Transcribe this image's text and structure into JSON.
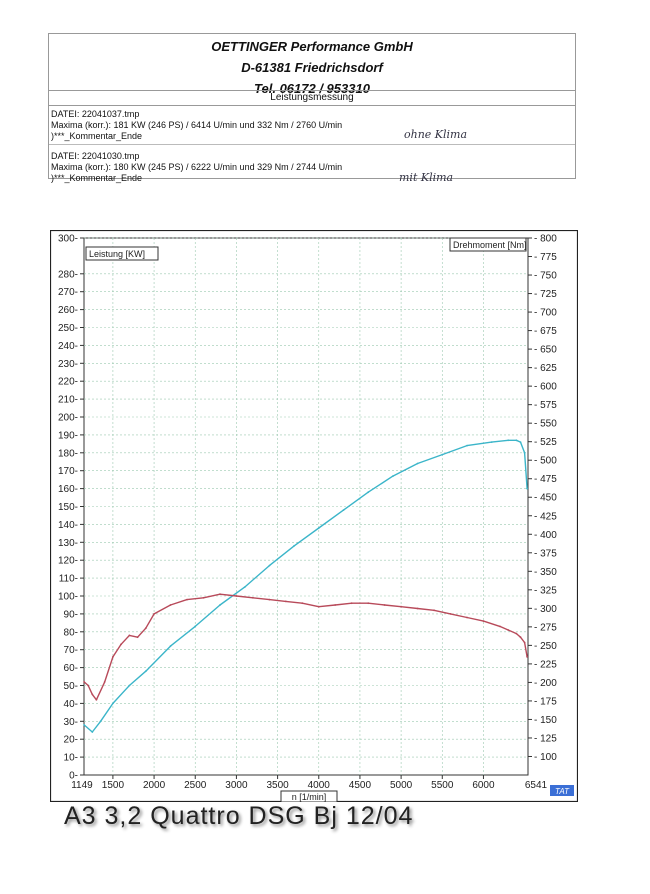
{
  "header": {
    "company": "OETTINGER   Performance  GmbH",
    "address": "D-61381 Friedrichsdorf",
    "phone": "Tel.  06172 / 953310",
    "section_title": "Leistungsmessung"
  },
  "files": [
    {
      "datei": "DATEI: 22041037.tmp",
      "maxima": "Maxima (korr.):  181 KW (246 PS)  /  6414 U/min  und    332 Nm  /  2760 U/min",
      "comment": ")***_Kommentar_Ende",
      "note": "ohne Klima"
    },
    {
      "datei": "DATEI: 22041030.tmp",
      "maxima": "Maxima (korr.):  180 KW (245 PS)  /  6222 U/min  und    329 Nm  /  2744 U/min",
      "comment": ")***_Kommentar_Ende",
      "note": "mit Klima"
    }
  ],
  "caption": "A3  3,2 Quattro DSG  Bj 12/04",
  "tat_label": "TAT",
  "chart_data": {
    "type": "line",
    "xlabel": "n [1/min]",
    "ylabel_left": "Leistung [KW]",
    "ylabel_right": "Drehmoment [Nm]",
    "xlim": [
      1149,
      6541
    ],
    "ylim_left": [
      0,
      300
    ],
    "ylim_right": [
      75,
      800
    ],
    "x_ticks": [
      1500,
      2000,
      2500,
      3000,
      3500,
      4000,
      4500,
      5000,
      5500,
      6000
    ],
    "x_edge_labels": [
      "1149",
      "6541"
    ],
    "y_left_ticks": [
      0,
      10,
      20,
      30,
      40,
      50,
      60,
      70,
      80,
      90,
      100,
      110,
      120,
      130,
      140,
      150,
      160,
      170,
      180,
      190,
      200,
      210,
      220,
      230,
      240,
      250,
      260,
      270,
      280,
      300
    ],
    "y_right_ticks": [
      100,
      125,
      150,
      175,
      200,
      225,
      250,
      275,
      300,
      325,
      350,
      375,
      400,
      425,
      450,
      475,
      500,
      525,
      550,
      575,
      600,
      625,
      650,
      675,
      700,
      725,
      750,
      775,
      800
    ],
    "grid": true,
    "series": [
      {
        "axis": "left",
        "color": "#3bb5c9",
        "x": [
          1150,
          1250,
          1350,
          1500,
          1700,
          1900,
          2200,
          2500,
          2800,
          3100,
          3400,
          3700,
          4000,
          4300,
          4600,
          4900,
          5200,
          5500,
          5800,
          6100,
          6300,
          6400,
          6450,
          6500,
          6530
        ],
        "y": [
          28,
          24,
          30,
          40,
          50,
          58,
          72,
          83,
          95,
          105,
          117,
          128,
          138,
          148,
          158,
          167,
          174,
          179,
          184,
          186,
          187,
          187,
          186,
          180,
          160
        ]
      },
      {
        "axis": "left",
        "color": "#b84a5a",
        "x": [
          1150,
          1200,
          1250,
          1300,
          1400,
          1500,
          1600,
          1700,
          1800,
          1900,
          2000,
          2200,
          2400,
          2600,
          2800,
          3000,
          3200,
          3400,
          3600,
          3800,
          4000,
          4200,
          4400,
          4600,
          4800,
          5000,
          5200,
          5400,
          5600,
          5800,
          6000,
          6200,
          6300,
          6400,
          6450,
          6500,
          6530
        ],
        "y": [
          52,
          50,
          45,
          42,
          52,
          66,
          73,
          78,
          77,
          82,
          90,
          95,
          98,
          99,
          101,
          100,
          99,
          98,
          97,
          96,
          94,
          95,
          96,
          96,
          95,
          94,
          93,
          92,
          90,
          88,
          86,
          83,
          81,
          79,
          77,
          74,
          66
        ]
      }
    ]
  }
}
